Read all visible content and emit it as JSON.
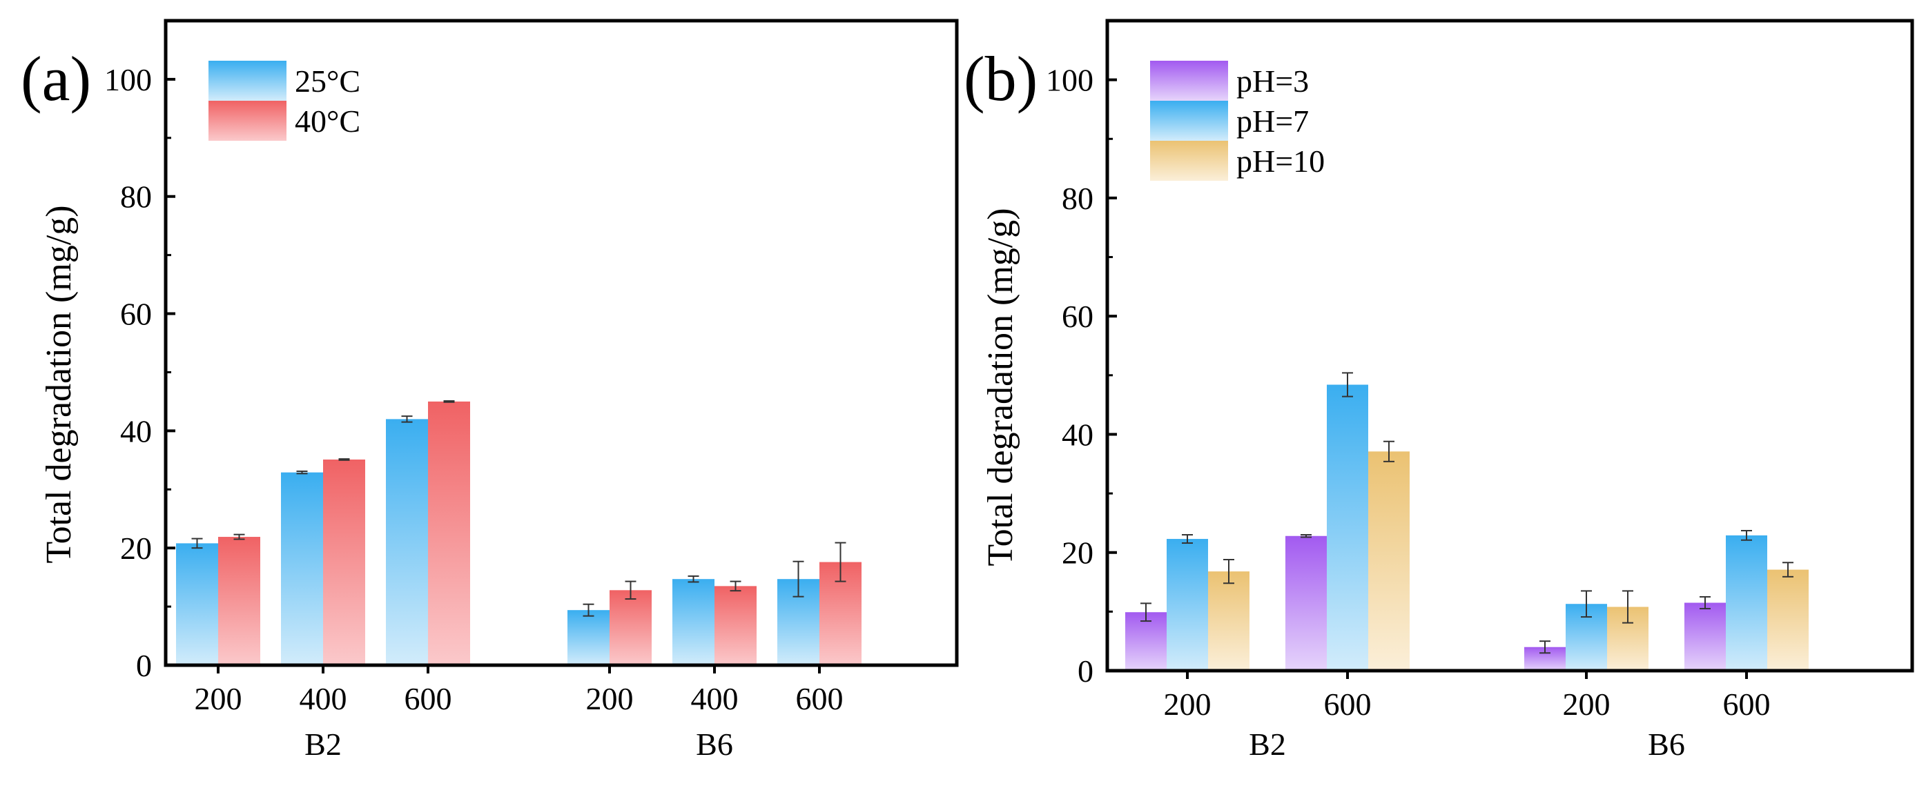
{
  "chart_data": [
    {
      "type": "bar",
      "panel_label": "(a)",
      "title": "",
      "xlabel": "",
      "ylabel": "Total degradation (mg/g)",
      "ylim": [
        0,
        110
      ],
      "yticks": [
        0,
        20,
        40,
        60,
        80,
        100
      ],
      "grid": false,
      "legend_position": "top-left",
      "groups": [
        {
          "name": "B2",
          "categories": [
            "200",
            "400",
            "600"
          ]
        },
        {
          "name": "B6",
          "categories": [
            "200",
            "400",
            "600"
          ]
        }
      ],
      "series": [
        {
          "name": "25°C",
          "top_color": "#3AAEF0",
          "bottom_color": "#D2ECFB",
          "values": [
            20.8,
            32.9,
            42.0,
            9.4,
            14.7,
            14.7
          ],
          "errors": [
            0.8,
            0.2,
            0.5,
            1.0,
            0.5,
            3.0
          ]
        },
        {
          "name": "40°C",
          "top_color": "#F06264",
          "bottom_color": "#FBC9CB",
          "values": [
            21.9,
            35.1,
            45.0,
            12.8,
            13.5,
            17.6
          ],
          "errors": [
            0.4,
            0.1,
            0.1,
            1.5,
            0.8,
            3.3
          ]
        }
      ]
    },
    {
      "type": "bar",
      "panel_label": "(b)",
      "title": "",
      "xlabel": "",
      "ylabel": "Total degradation (mg/g)",
      "ylim": [
        0,
        110
      ],
      "yticks": [
        0,
        20,
        40,
        60,
        80,
        100
      ],
      "grid": false,
      "legend_position": "top-left",
      "groups": [
        {
          "name": "B2",
          "categories": [
            "200",
            "600"
          ]
        },
        {
          "name": "B6",
          "categories": [
            "200",
            "600"
          ]
        }
      ],
      "series": [
        {
          "name": "pH=3",
          "top_color": "#A25AF0",
          "bottom_color": "#E6D4FB",
          "values": [
            9.9,
            22.8,
            4.0,
            11.5
          ],
          "errors": [
            1.5,
            0.2,
            1.0,
            1.0
          ]
        },
        {
          "name": "pH=7",
          "top_color": "#3AAEF0",
          "bottom_color": "#D2ECFB",
          "values": [
            22.3,
            48.4,
            11.3,
            22.9
          ],
          "errors": [
            0.7,
            2.0,
            2.2,
            0.8
          ]
        },
        {
          "name": "pH=10",
          "top_color": "#EBC272",
          "bottom_color": "#FBEFD9",
          "values": [
            16.8,
            37.1,
            10.8,
            17.1
          ],
          "errors": [
            2.0,
            1.7,
            2.7,
            1.2
          ]
        }
      ]
    }
  ]
}
